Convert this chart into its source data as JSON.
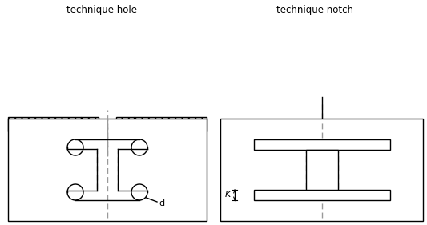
{
  "title_left": "technique hole",
  "title_right": "technique notch",
  "bg_color": "#ffffff",
  "line_color": "#000000",
  "dashed_color": "#999999",
  "label_d": "d",
  "label_k": "K",
  "fig_w": 5.33,
  "fig_h": 2.81,
  "dpi": 100
}
